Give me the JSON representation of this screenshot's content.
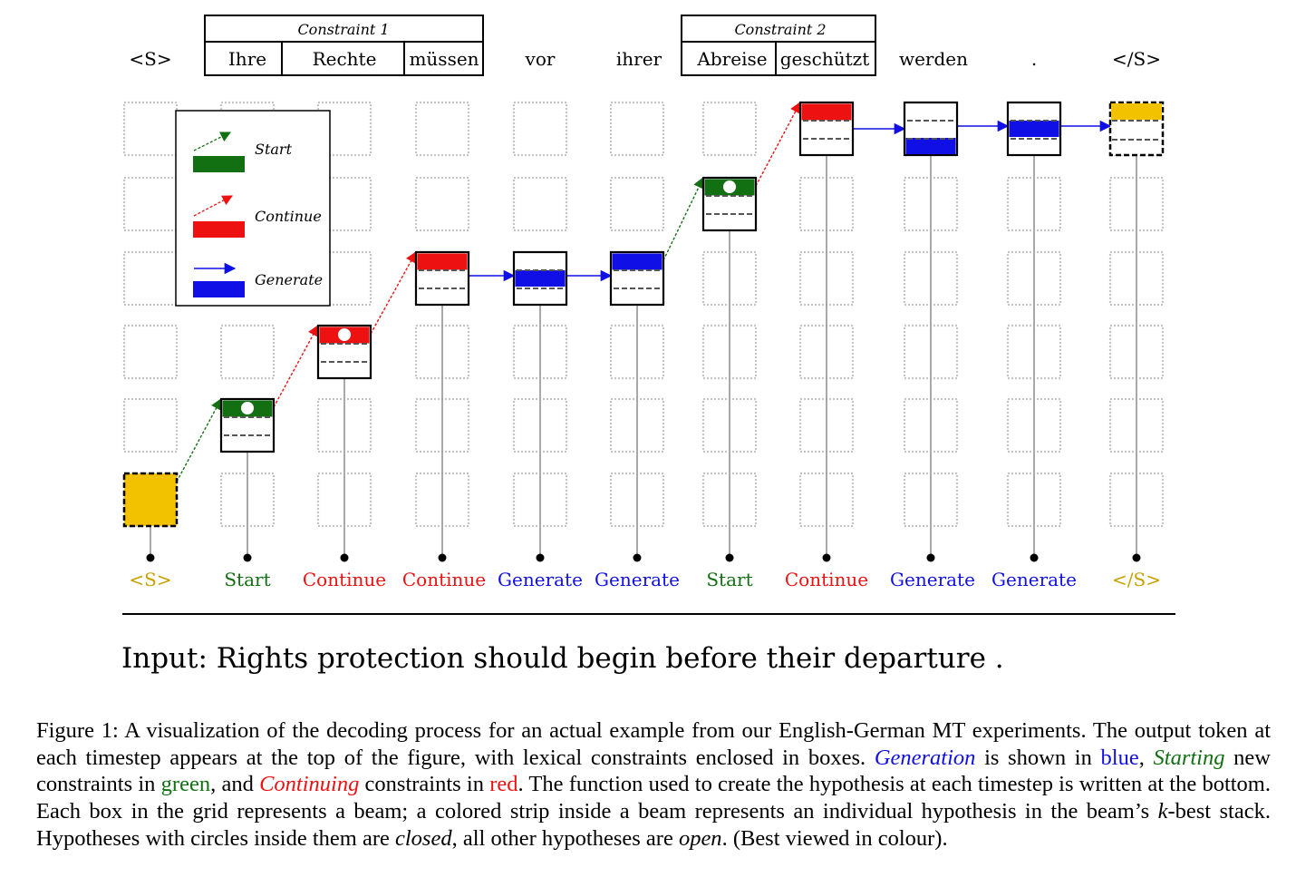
{
  "figure": {
    "tokens": [
      "<S>",
      "Ihre",
      "Rechte",
      "müssen",
      "vor",
      "ihrer",
      "Abreise",
      "geschützt",
      "werden",
      ".",
      "</S>"
    ],
    "constraints": [
      {
        "label": "Constraint 1",
        "tokens": [
          "Ihre",
          "Rechte",
          "müssen"
        ]
      },
      {
        "label": "Constraint 2",
        "tokens": [
          "Abreise",
          "geschützt"
        ]
      }
    ],
    "operations": [
      "<S>",
      "Start",
      "Continue",
      "Continue",
      "Generate",
      "Generate",
      "Start",
      "Continue",
      "Generate",
      "Generate",
      "</S>"
    ],
    "legend": [
      {
        "label": "Start",
        "color": "#127012"
      },
      {
        "label": "Continue",
        "color": "#ee1111"
      },
      {
        "label": "Generate",
        "color": "#1010e6"
      }
    ],
    "input_text": "Input: Rights protection should begin before their departure .",
    "colors": {
      "start": "#127012",
      "continue": "#ee1111",
      "generate": "#1010e6",
      "boundary": "#f2c100",
      "grid": "#c4c4c4"
    }
  },
  "caption": {
    "p1": "Figure 1: A visualization of the decoding process for an actual example from our English-German MT experiments. The output token at each timestep appears at the top of the figure, with lexical constraints enclosed in boxes. ",
    "generation": "Generation",
    "p2": " is shown in ",
    "blue": "blue",
    "p3": ", ",
    "starting": "Starting",
    "p4": " new constraints in ",
    "green": "green",
    "p5": ", and ",
    "continuing": "Continuing",
    "p6": " constraints in ",
    "red": "red",
    "p7": ". The function used to create the hypothesis at each timestep is written at the bottom. Each box in the grid represents a beam; a colored strip inside a beam represents an individual hypothesis in the beam’s ",
    "k": "k",
    "p8": "-best stack. Hypotheses with circles inside them are ",
    "closed": "closed",
    "p9": ", all other hypotheses are ",
    "open": "open",
    "p10": ". (Best viewed in colour)."
  }
}
